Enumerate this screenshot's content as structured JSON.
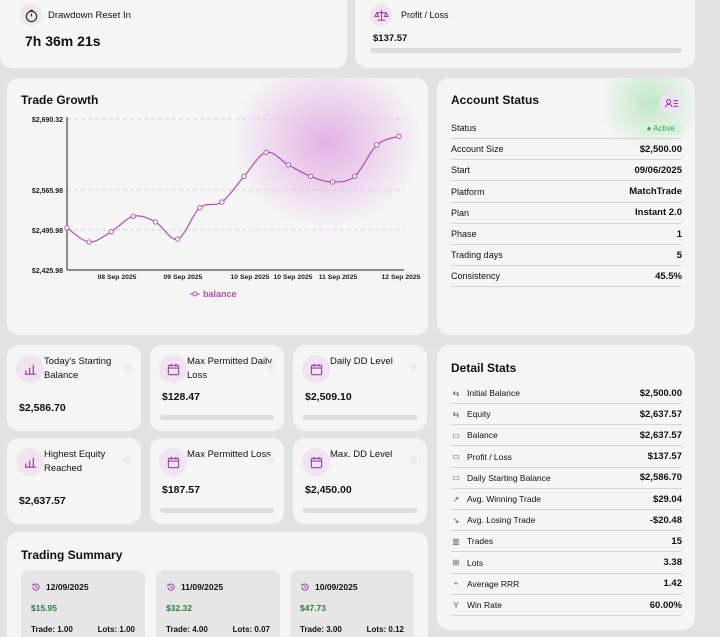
{
  "reset": {
    "title": "Drawdown Reset In",
    "value": "7h 36m 21s"
  },
  "pl": {
    "title": "Profit / Loss",
    "value": "$137.57"
  },
  "growth": {
    "title": "Trade Growth",
    "y_ticks": [
      "$2,690.32",
      "$2,565.98",
      "$2,495.98",
      "$2,425.98"
    ],
    "x_ticks": [
      "08 Sep 2025",
      "09 Sep 2025",
      "10 Sep 2025",
      "10 Sep 2025",
      "11 Sep 2025",
      "12 Sep 2025"
    ],
    "legend": "balance"
  },
  "chart_data": {
    "type": "line",
    "series": [
      {
        "name": "balance",
        "values": [
          2500.0,
          2475.0,
          2493.0,
          2520.0,
          2510.0,
          2480.0,
          2535.0,
          2545.0,
          2590.0,
          2632.0,
          2610.0,
          2590.0,
          2580.0,
          2590.0,
          2645.0,
          2660.0
        ]
      }
    ],
    "x": [
      0,
      1,
      2,
      3,
      4,
      5,
      6,
      7,
      8,
      9,
      10,
      11,
      12,
      13,
      14,
      15
    ],
    "y_ticks": [
      2690.32,
      2565.98,
      2495.98,
      2425.98
    ],
    "x_tick_labels": [
      "08 Sep 2025",
      "09 Sep 2025",
      "10 Sep 2025",
      "10 Sep 2025",
      "11 Sep 2025",
      "12 Sep 2025"
    ],
    "title": "Trade Growth",
    "ylim": [
      2425.98,
      2690.32
    ],
    "legend": "bottom"
  },
  "account": {
    "title": "Account Status",
    "rows": [
      {
        "label": "Status",
        "value": "Active"
      },
      {
        "label": "Account Size",
        "value": "$2,500.00"
      },
      {
        "label": "Start",
        "value": "09/06/2025"
      },
      {
        "label": "Platform",
        "value": "MatchTrade"
      },
      {
        "label": "Plan",
        "value": "Instant 2.0"
      },
      {
        "label": "Phase",
        "value": "1"
      },
      {
        "label": "Trading days",
        "value": "5"
      },
      {
        "label": "Consistency",
        "value": "45.5%"
      }
    ]
  },
  "tiles": [
    {
      "label": "Today's Starting Balance",
      "value": "$2,586.70",
      "progress": null
    },
    {
      "label": "Max Permitted Daily Loss",
      "value": "$128.47",
      "progress": 0
    },
    {
      "label": "Daily DD Level",
      "value": "$2,509.10",
      "progress": 0
    },
    {
      "label": "Highest Equity Reached",
      "value": "$2,637.57",
      "progress": null
    },
    {
      "label": "Max Permitted Loss",
      "value": "$187.57",
      "progress": 0
    },
    {
      "label": "Max. DD Level",
      "value": "$2,450.00",
      "progress": 0
    }
  ],
  "summary": {
    "title": "Trading Summary",
    "days": [
      {
        "date": "12/09/2025",
        "amount": "$15.95",
        "trade": "Trade: 1.00",
        "lots": "Lots: 1.00"
      },
      {
        "date": "11/09/2025",
        "amount": "$32.32",
        "trade": "Trade: 4.00",
        "lots": "Lots: 0.07"
      },
      {
        "date": "10/09/2025",
        "amount": "$47.73",
        "trade": "Trade: 3.00",
        "lots": "Lots: 0.12"
      }
    ]
  },
  "detail": {
    "title": "Detail Stats",
    "rows": [
      {
        "icon": "⇆",
        "label": "Initial Balance",
        "value": "$2,500.00"
      },
      {
        "icon": "⇆",
        "label": "Equity",
        "value": "$2,637.57"
      },
      {
        "icon": "▭",
        "label": "Balance",
        "value": "$2,637.57"
      },
      {
        "icon": "▭",
        "label": "Profit / Loss",
        "value": "$137.57"
      },
      {
        "icon": "▭",
        "label": "Daily Starting Balance",
        "value": "$2,586.70"
      },
      {
        "icon": "↗",
        "label": "Avg. Winning Trade",
        "value": "$29.04"
      },
      {
        "icon": "↘",
        "label": "Avg. Losing Trade",
        "value": "-$20.48"
      },
      {
        "icon": "▥",
        "label": "Trades",
        "value": "15"
      },
      {
        "icon": "⊞",
        "label": "Lots",
        "value": "3.38"
      },
      {
        "icon": "÷",
        "label": "Average RRR",
        "value": "1.42"
      },
      {
        "icon": "Y",
        "label": "Win Rate",
        "value": "60.00%"
      }
    ]
  },
  "colors": {
    "accent": "#b04cb5",
    "positive": "#2f7d45",
    "active_bg": "#d7f1dd"
  },
  "icons": {
    "reset": "stopwatch-icon",
    "pl": "scale-icon",
    "account": "user-list-icon",
    "tile": "calendar-icon",
    "summary": "history-icon"
  }
}
